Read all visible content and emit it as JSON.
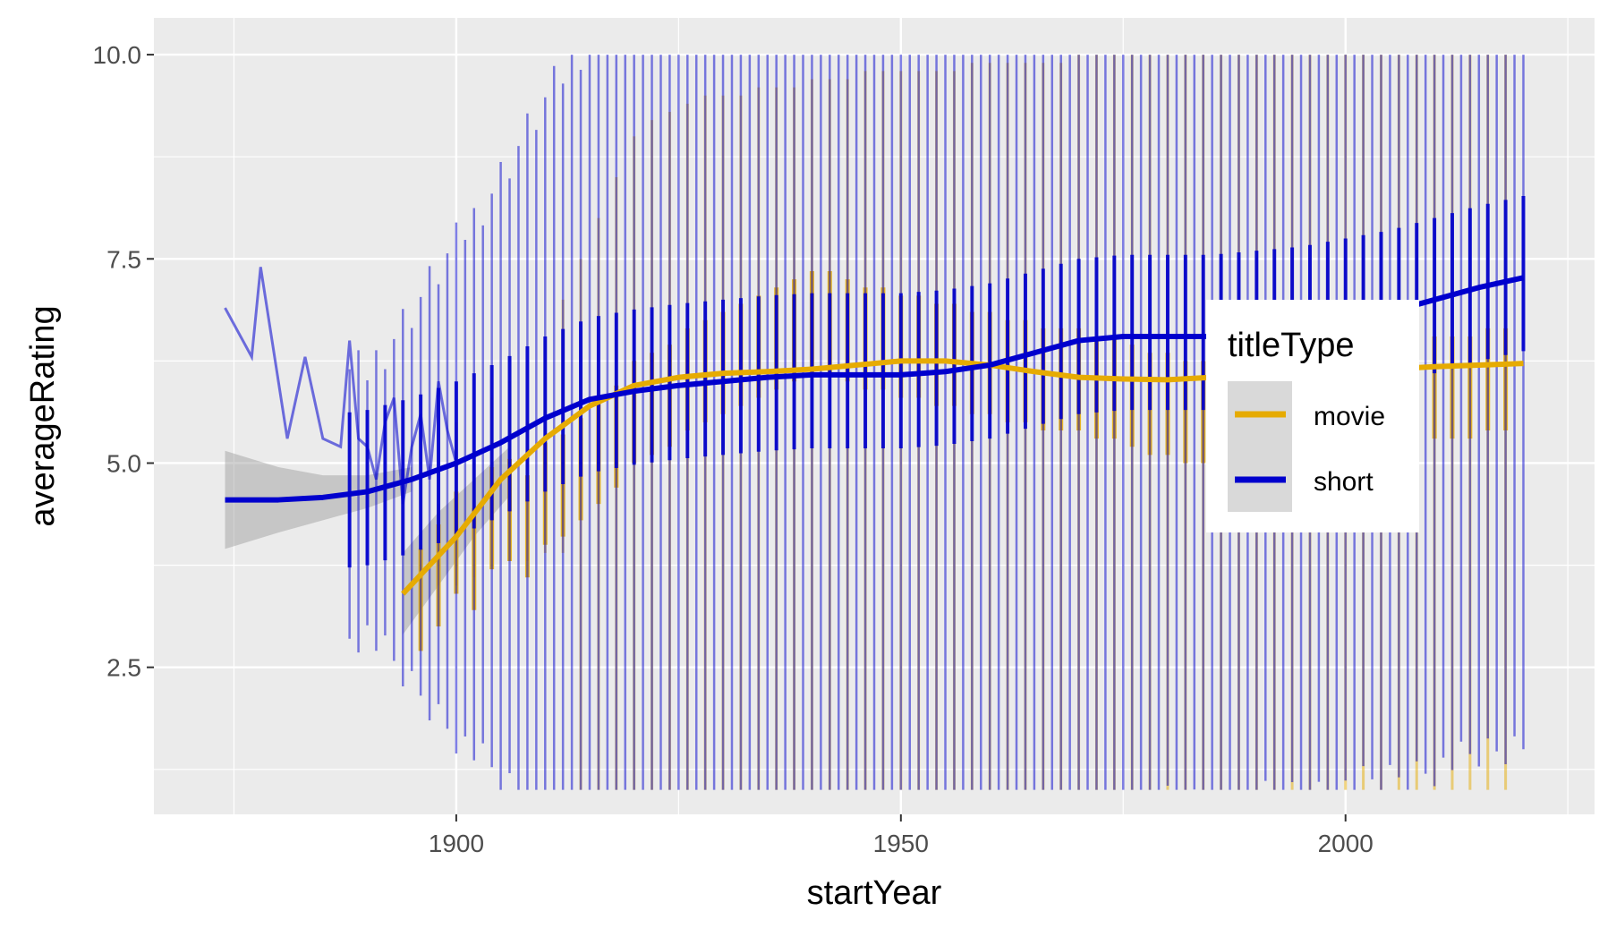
{
  "chart_data": {
    "type": "line",
    "xlabel": "startYear",
    "ylabel": "averageRating",
    "xlim": [
      1866,
      2028
    ],
    "ylim": [
      0.7,
      10.45
    ],
    "x_ticks": [
      1900,
      1950,
      2000
    ],
    "x_tick_labels": [
      "1900",
      "1950",
      "2000"
    ],
    "y_ticks": [
      2.5,
      5.0,
      7.5,
      10.0
    ],
    "y_tick_labels": [
      "2.5",
      "5.0",
      "7.5",
      "10.0"
    ],
    "grid": true,
    "legend": {
      "title": "titleType",
      "position": "right",
      "entries": [
        "movie",
        "short"
      ]
    },
    "series": [
      {
        "name": "movie",
        "color": "#E6AB02",
        "year_min": 1894,
        "year_max": 2020,
        "x_start": 1896,
        "step": 2,
        "mean": [
          3.5,
          3.8,
          4.2,
          4.0,
          4.5,
          4.6,
          4.4,
          4.8,
          4.9,
          5.1,
          5.3,
          5.5,
          5.8,
          5.9,
          6.0,
          6.2,
          6.3,
          6.4,
          6.5,
          6.6,
          6.7,
          6.8,
          6.9,
          6.9,
          6.8,
          6.7,
          6.7,
          6.6,
          6.6,
          6.5,
          6.5,
          6.4,
          6.4,
          6.3,
          6.3,
          6.2,
          6.2,
          6.2,
          6.1,
          6.1,
          6.0,
          5.9,
          5.9,
          5.8,
          5.8,
          5.8,
          5.8,
          5.8,
          5.9,
          5.9,
          5.9,
          5.9,
          6.0,
          6.0,
          6.0,
          6.0,
          6.1,
          6.1,
          6.1,
          6.1,
          6.2,
          6.2
        ],
        "lo": [
          3.2,
          3.5,
          3.5,
          3.6,
          3.7,
          3.8,
          3.8,
          3.9,
          3.9,
          1.0,
          1.0,
          1.0,
          1.0,
          1.0,
          1.0,
          1.0,
          1.0,
          1.0,
          1.0,
          1.0,
          1.0,
          1.0,
          1.0,
          1.0,
          1.0,
          1.0,
          1.0,
          1.0,
          1.0,
          1.0,
          1.0,
          1.0,
          1.0,
          1.0,
          1.0,
          1.0,
          1.0,
          1.0,
          1.0,
          1.0,
          1.0,
          1.0,
          1.0,
          1.0,
          1.0,
          1.0,
          1.0,
          1.0,
          1.0,
          1.0,
          1.0,
          1.0,
          1.0,
          1.0,
          1.0,
          1.0,
          1.0,
          1.0,
          1.0,
          1.0,
          1.0,
          1.0
        ],
        "hi": [
          4.0,
          4.5,
          5.5,
          5.0,
          5.8,
          6.0,
          5.5,
          6.5,
          7.0,
          7.5,
          8.0,
          8.5,
          9.0,
          9.2,
          9.3,
          9.4,
          9.5,
          9.5,
          9.5,
          9.6,
          9.6,
          9.6,
          9.7,
          9.7,
          9.7,
          9.8,
          9.8,
          9.8,
          9.8,
          9.8,
          9.8,
          9.9,
          9.9,
          9.9,
          9.9,
          9.9,
          9.9,
          10.0,
          10.0,
          10.0,
          10.0,
          10.0,
          10.0,
          10.0,
          10.0,
          10.0,
          10.0,
          10.0,
          10.0,
          10.0,
          10.0,
          10.0,
          10.0,
          10.0,
          10.0,
          10.0,
          10.0,
          10.0,
          10.0,
          10.0,
          10.0,
          10.0
        ],
        "smooth_x": [
          1894,
          1900,
          1905,
          1910,
          1915,
          1920,
          1925,
          1930,
          1935,
          1940,
          1945,
          1950,
          1955,
          1960,
          1965,
          1970,
          1975,
          1980,
          1985,
          1990,
          1995,
          2000,
          2005,
          2010,
          2015,
          2020
        ],
        "smooth_y": [
          3.4,
          4.1,
          4.8,
          5.3,
          5.7,
          5.95,
          6.05,
          6.1,
          6.12,
          6.15,
          6.2,
          6.25,
          6.25,
          6.2,
          6.12,
          6.05,
          6.03,
          6.02,
          6.05,
          6.08,
          6.1,
          6.12,
          6.15,
          6.18,
          6.2,
          6.22
        ]
      },
      {
        "name": "short",
        "color": "#0000CD",
        "year_min": 1874,
        "year_max": 2020,
        "x_start": 1874,
        "step": 1,
        "lines_x": [
          1874,
          1877,
          1878,
          1881,
          1883,
          1885,
          1887,
          1888,
          1889,
          1890,
          1891,
          1892,
          1893,
          1894,
          1895,
          1896,
          1897,
          1898,
          1899,
          1900
        ],
        "lines_y": [
          6.9,
          6.3,
          7.4,
          5.3,
          6.3,
          5.3,
          5.2,
          6.5,
          5.3,
          5.2,
          4.8,
          5.5,
          5.8,
          4.5,
          5.2,
          5.6,
          4.8,
          6.0,
          5.4,
          5.0
        ],
        "smooth_x": [
          1874,
          1880,
          1885,
          1890,
          1895,
          1900,
          1905,
          1910,
          1915,
          1920,
          1925,
          1930,
          1935,
          1940,
          1945,
          1950,
          1955,
          1960,
          1965,
          1970,
          1975,
          1980,
          1985,
          1990,
          1995,
          2000,
          2005,
          2010,
          2015,
          2020
        ],
        "smooth_y": [
          4.55,
          4.55,
          4.58,
          4.65,
          4.8,
          5.0,
          5.25,
          5.55,
          5.78,
          5.88,
          5.95,
          6.0,
          6.05,
          6.08,
          6.08,
          6.08,
          6.12,
          6.2,
          6.35,
          6.5,
          6.55,
          6.55,
          6.55,
          6.6,
          6.65,
          6.75,
          6.85,
          7.0,
          7.15,
          7.27
        ]
      }
    ],
    "confidence_band_color": "#999999"
  }
}
